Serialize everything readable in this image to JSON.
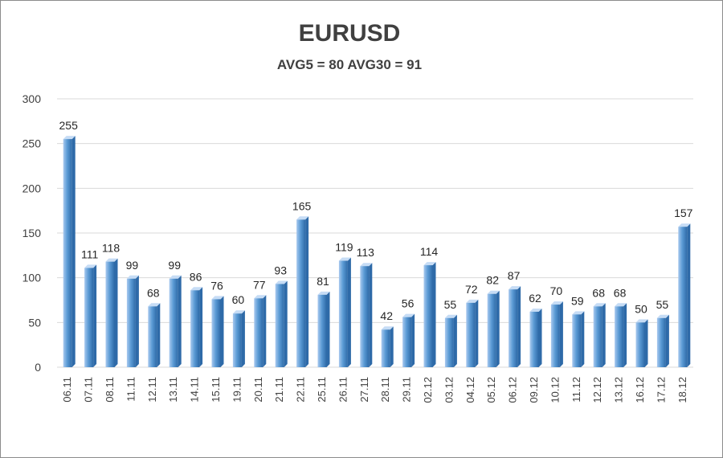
{
  "chart_data": {
    "type": "bar",
    "title": "EURUSD",
    "subtitle": "AVG5 = 80 AVG30 = 91",
    "categories": [
      "06.11",
      "07.11",
      "08.11",
      "11.11",
      "12.11",
      "13.11",
      "14.11",
      "15.11",
      "19.11",
      "20.11",
      "21.11",
      "22.11",
      "25.11",
      "26.11",
      "27.11",
      "28.11",
      "29.11",
      "02.12",
      "03.12",
      "04.12",
      "05.12",
      "06.12",
      "09.12",
      "10.12",
      "11.12",
      "12.12",
      "13.12",
      "16.12",
      "17.12",
      "18.12"
    ],
    "values": [
      255,
      111,
      118,
      99,
      68,
      99,
      86,
      76,
      60,
      77,
      93,
      165,
      81,
      119,
      113,
      42,
      56,
      114,
      55,
      72,
      82,
      87,
      62,
      70,
      59,
      68,
      68,
      50,
      55,
      157
    ],
    "yticks": [
      0,
      50,
      100,
      150,
      200,
      250,
      300
    ],
    "ylim": [
      0,
      300
    ],
    "grid": true,
    "legend": "none",
    "colors": {
      "bar_light": "#a9c9ef",
      "bar_mid": "#5b9bd5",
      "bar_dark": "#2e6aa8",
      "bar_top": "#c6dcf5"
    }
  }
}
